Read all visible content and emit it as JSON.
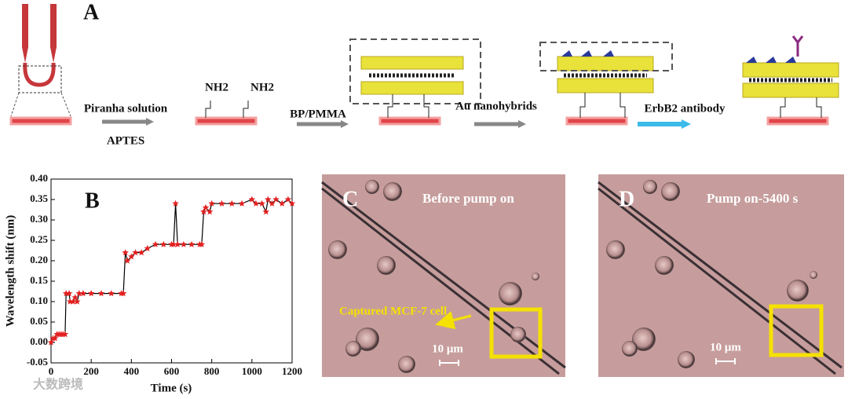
{
  "figure": {
    "panel_labels": [
      "A",
      "B",
      "C",
      "D"
    ],
    "schematic": {
      "step1_top": "Piranha solution",
      "step1_bottom": "APTES",
      "group_1": "NH2",
      "group_2": "NH2",
      "step2": "BP/PMMA",
      "step3": "Au nanohybrids",
      "step4": "ErbB2 antibody"
    },
    "micrograph_c": {
      "title": "Before pump on",
      "annotation": "Captured MCF-7 cell",
      "scale": "10 μm"
    },
    "micrograph_d": {
      "title": "Pump on-5400 s",
      "scale": "10 μm"
    },
    "watermark": "大数跨境"
  },
  "chart_data": {
    "type": "line",
    "xlabel": "Time (s)",
    "ylabel": "Wavelength shift (nm)",
    "color": "#e32020",
    "line_color": "#000000",
    "x": [
      0,
      10,
      20,
      30,
      40,
      50,
      60,
      70,
      75,
      90,
      95,
      110,
      120,
      130,
      140,
      160,
      200,
      250,
      300,
      350,
      360,
      370,
      380,
      400,
      420,
      450,
      480,
      520,
      560,
      600,
      610,
      620,
      630,
      660,
      700,
      740,
      750,
      760,
      770,
      790,
      800,
      850,
      900,
      950,
      1000,
      1020,
      1050,
      1070,
      1080,
      1100,
      1120,
      1150,
      1180,
      1200
    ],
    "values": [
      0.0,
      0.01,
      0.01,
      0.02,
      0.02,
      0.02,
      0.02,
      0.02,
      0.12,
      0.12,
      0.1,
      0.1,
      0.11,
      0.1,
      0.12,
      0.12,
      0.12,
      0.12,
      0.12,
      0.12,
      0.12,
      0.22,
      0.2,
      0.21,
      0.22,
      0.22,
      0.23,
      0.24,
      0.24,
      0.24,
      0.24,
      0.34,
      0.24,
      0.24,
      0.24,
      0.24,
      0.24,
      0.32,
      0.33,
      0.32,
      0.34,
      0.34,
      0.34,
      0.34,
      0.35,
      0.34,
      0.34,
      0.32,
      0.35,
      0.34,
      0.35,
      0.34,
      0.35,
      0.34
    ],
    "xlim": [
      0,
      1200
    ],
    "xticks": [
      0,
      200,
      400,
      600,
      800,
      1000,
      1200
    ],
    "ylim": [
      -0.05,
      0.4
    ],
    "yticks": [
      -0.05,
      {
        "value": 0,
        "label": "0.00"
      },
      0.05,
      {
        "value": 0.1,
        "label": "0.10"
      },
      0.15,
      {
        "value": 0.2,
        "label": "0.20"
      },
      0.25,
      {
        "value": 0.3,
        "label": "0.30"
      },
      0.35,
      {
        "value": 0.4,
        "label": "0.40"
      }
    ]
  }
}
